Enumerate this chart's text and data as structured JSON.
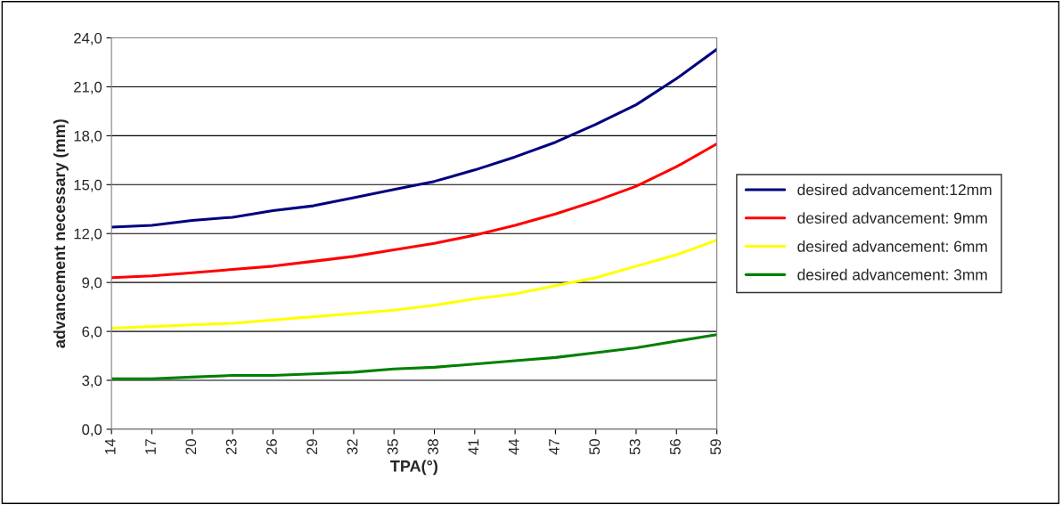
{
  "chart_data": {
    "type": "line",
    "xlabel": "TPA(°)",
    "ylabel": "advancement necessary (mm)",
    "x": [
      14,
      17,
      20,
      23,
      26,
      29,
      32,
      35,
      38,
      41,
      44,
      47,
      50,
      53,
      56,
      59
    ],
    "series": [
      {
        "name": "desired advancement:12mm",
        "color": "#000080",
        "values": [
          12.4,
          12.5,
          12.8,
          13.0,
          13.4,
          13.7,
          14.2,
          14.7,
          15.2,
          15.9,
          16.7,
          17.6,
          18.7,
          19.9,
          21.5,
          23.3
        ]
      },
      {
        "name": "desired advancement: 9mm",
        "color": "#ff0000",
        "values": [
          9.3,
          9.4,
          9.6,
          9.8,
          10.0,
          10.3,
          10.6,
          11.0,
          11.4,
          11.9,
          12.5,
          13.2,
          14.0,
          14.9,
          16.1,
          17.5
        ]
      },
      {
        "name": "desired advancement: 6mm",
        "color": "#ffff00",
        "values": [
          6.2,
          6.3,
          6.4,
          6.5,
          6.7,
          6.9,
          7.1,
          7.3,
          7.6,
          8.0,
          8.3,
          8.8,
          9.3,
          10.0,
          10.7,
          11.6
        ]
      },
      {
        "name": "desired advancement: 3mm",
        "color": "#008000",
        "values": [
          3.1,
          3.1,
          3.2,
          3.3,
          3.3,
          3.4,
          3.5,
          3.7,
          3.8,
          4.0,
          4.2,
          4.4,
          4.7,
          5.0,
          5.4,
          5.8
        ]
      }
    ],
    "xlim": [
      14,
      59
    ],
    "xticks": [
      14,
      17,
      20,
      23,
      26,
      29,
      32,
      35,
      38,
      41,
      44,
      47,
      50,
      53,
      56,
      59
    ],
    "ylim": [
      0,
      24
    ],
    "yticks": [
      {
        "value": 0,
        "label": "0,0"
      },
      {
        "value": 3,
        "label": "3,0"
      },
      {
        "value": 6,
        "label": "6,0"
      },
      {
        "value": 9,
        "label": "9,0"
      },
      {
        "value": 12,
        "label": "12,0"
      },
      {
        "value": 15,
        "label": "15,0"
      },
      {
        "value": 18,
        "label": "18,0"
      },
      {
        "value": 21,
        "label": "21,0"
      },
      {
        "value": 24,
        "label": "24,0"
      }
    ],
    "grid": "y",
    "legend": "right",
    "marker": "none",
    "line_style": "solid"
  }
}
